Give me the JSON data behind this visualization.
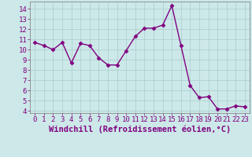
{
  "x": [
    0,
    1,
    2,
    3,
    4,
    5,
    6,
    7,
    8,
    9,
    10,
    11,
    12,
    13,
    14,
    15,
    16,
    17,
    18,
    19,
    20,
    21,
    22,
    23
  ],
  "y": [
    10.7,
    10.4,
    10.0,
    10.7,
    8.7,
    10.6,
    10.4,
    9.2,
    8.5,
    8.5,
    9.9,
    11.3,
    12.1,
    12.1,
    12.4,
    14.3,
    10.4,
    6.5,
    5.3,
    5.4,
    4.2,
    4.2,
    4.5,
    4.4
  ],
  "line_color": "#800080",
  "marker": "D",
  "marker_size": 2.5,
  "bg_color": "#cce8e8",
  "grid_color": "#aacccc",
  "xlabel": "Windchill (Refroidissement éolien,°C)",
  "xlim": [
    -0.5,
    23.5
  ],
  "ylim": [
    3.8,
    14.7
  ],
  "yticks": [
    4,
    5,
    6,
    7,
    8,
    9,
    10,
    11,
    12,
    13,
    14
  ],
  "xtick_labels": [
    "0",
    "1",
    "2",
    "3",
    "4",
    "5",
    "6",
    "7",
    "8",
    "9",
    "10",
    "11",
    "12",
    "13",
    "14",
    "15",
    "16",
    "17",
    "18",
    "19",
    "20",
    "21",
    "22",
    "23"
  ],
  "tick_fontsize": 6.5,
  "xlabel_fontsize": 7.5,
  "line_width": 1.0
}
